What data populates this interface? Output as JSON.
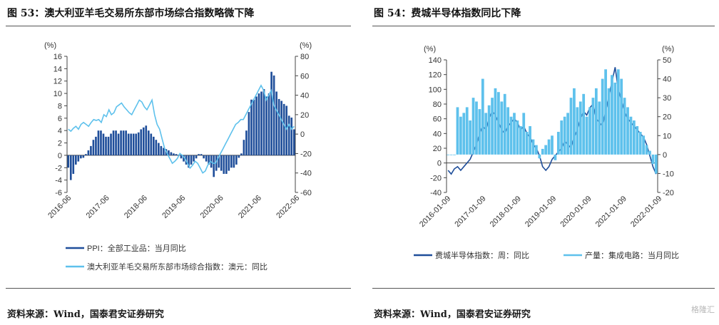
{
  "watermark": "格隆汇",
  "chart_data": [
    {
      "type": "line",
      "title": "图 53：澳大利亚羊毛交易所东部市场综合指数略微下降",
      "source": "资料来源：Wind，国泰君安证券研究",
      "y_left": {
        "unit": "(%)",
        "ylim": [
          -6,
          16
        ],
        "ticks": [
          -6,
          -4,
          -2,
          0,
          2,
          4,
          6,
          8,
          10,
          12,
          14,
          16
        ]
      },
      "y_right": {
        "unit": "(%)",
        "ylim": [
          -60,
          80
        ],
        "ticks": [
          -60,
          -40,
          -20,
          0,
          20,
          40,
          60,
          80
        ]
      },
      "x_ticks": [
        "2016-06",
        "2017-06",
        "2018-06",
        "2019-06",
        "2020-06",
        "2021-06",
        "2022-06"
      ],
      "x_range": [
        "2016-06",
        "2022-06"
      ],
      "series": [
        {
          "name": "PPI：全部工业品：当月同比",
          "axis": "left",
          "style": "bar",
          "color": "#1f4e9a",
          "values": [
            -2,
            -4,
            -3,
            -1.5,
            -1,
            -0.5,
            -0.4,
            0.2,
            0.8,
            1.5,
            2.5,
            3,
            4,
            4,
            3.5,
            3,
            3,
            3.5,
            4,
            4,
            3.5,
            4,
            4,
            4,
            3.5,
            3.5,
            3.5,
            3.5,
            3.7,
            4.2,
            4.5,
            4.8,
            4,
            3.5,
            3,
            2.5,
            2,
            1.5,
            1.2,
            1,
            0.8,
            0.5,
            0.3,
            0.2,
            0.1,
            -0.5,
            -1,
            -1.5,
            -2,
            -1.5,
            -1,
            -0.5,
            0.2,
            0.2,
            -0.5,
            -1,
            -1.5,
            -2,
            -3.5,
            -2.5,
            -2,
            -2.5,
            -3,
            -3,
            -2.5,
            -2,
            -2,
            -1.5,
            -0.4,
            0.3,
            2.5,
            4,
            7,
            9,
            9,
            9.5,
            10,
            10.3,
            10.7,
            9.5,
            10,
            13.5,
            12.9,
            10.3,
            9.1,
            8.8,
            8.3,
            8,
            6.4,
            6.1,
            4.2
          ]
        },
        {
          "name": "澳大利亚羊毛交易所东部市场综合指数：澳元：同比",
          "axis": "right",
          "style": "line",
          "color": "#5ec1ec",
          "values": [
            5,
            3,
            6,
            8,
            5,
            10,
            12,
            10,
            8,
            12,
            15,
            14,
            15,
            12,
            20,
            18,
            25,
            20,
            22,
            28,
            30,
            32,
            28,
            25,
            22,
            20,
            25,
            30,
            35,
            33,
            28,
            25,
            30,
            35,
            20,
            10,
            5,
            -5,
            -15,
            -20,
            -25,
            -30,
            -28,
            -25,
            -20,
            -22,
            -25,
            -30,
            -35,
            -32,
            -28,
            -30,
            -35,
            -40,
            -38,
            -32,
            -28,
            -30,
            -30,
            -25,
            -20,
            -15,
            -10,
            -5,
            0,
            5,
            10,
            12,
            15,
            15,
            20,
            25,
            30,
            35,
            40,
            45,
            50,
            45,
            35,
            40,
            45,
            30,
            25,
            20,
            15,
            10,
            5,
            10,
            5,
            8
          ]
        }
      ]
    },
    {
      "type": "line",
      "title": "图 54：费城半导体指数同比下降",
      "source": "资料来源：Wind，国泰君安证券研究",
      "y_left": {
        "unit": "(%)",
        "ylim": [
          -40,
          140
        ],
        "ticks": [
          -40,
          -20,
          0,
          20,
          40,
          60,
          80,
          100,
          120,
          140
        ]
      },
      "y_right": {
        "unit": "(%)",
        "ylim": [
          -20,
          50
        ],
        "ticks": [
          -20,
          -10,
          0,
          10,
          20,
          30,
          40,
          50
        ]
      },
      "x_ticks": [
        "2016-01-09",
        "2017-01-09",
        "2018-01-09",
        "2019-01-09",
        "2020-01-09",
        "2021-01-09",
        "2022-01-09"
      ],
      "x_range": [
        "2016-01-09",
        "2022-07-01"
      ],
      "series": [
        {
          "name": "费城半导体指数：周：同比",
          "axis": "left",
          "style": "line",
          "color": "#1f4e9a",
          "values": [
            -10,
            -15,
            -8,
            -5,
            -10,
            -5,
            0,
            5,
            15,
            25,
            40,
            50,
            45,
            60,
            70,
            65,
            55,
            45,
            40,
            50,
            55,
            60,
            55,
            45,
            50,
            40,
            35,
            25,
            20,
            10,
            -5,
            -10,
            -5,
            5,
            10,
            15,
            20,
            30,
            25,
            20,
            35,
            45,
            60,
            70,
            65,
            75,
            80,
            60,
            55,
            50,
            70,
            90,
            110,
            130,
            100,
            85,
            70,
            60,
            55,
            50,
            45,
            40,
            35,
            25,
            10,
            -5,
            -15
          ]
        },
        {
          "name": "产量：集成电路：当月同比",
          "axis": "right",
          "style": "bar",
          "color": "#5ec1ec",
          "values": [
            0,
            0,
            0,
            25,
            20,
            22,
            25,
            18,
            30,
            28,
            24,
            40,
            22,
            26,
            30,
            35,
            33,
            28,
            32,
            25,
            20,
            22,
            18,
            15,
            22,
            12,
            15,
            8,
            5,
            -2,
            3,
            5,
            8,
            10,
            -3,
            12,
            18,
            20,
            22,
            30,
            35,
            25,
            28,
            32,
            20,
            25,
            30,
            35,
            28,
            40,
            45,
            35,
            42,
            38,
            45,
            40,
            30,
            25,
            20,
            18,
            15,
            12,
            10,
            5,
            2,
            -5,
            -10
          ]
        }
      ]
    }
  ]
}
